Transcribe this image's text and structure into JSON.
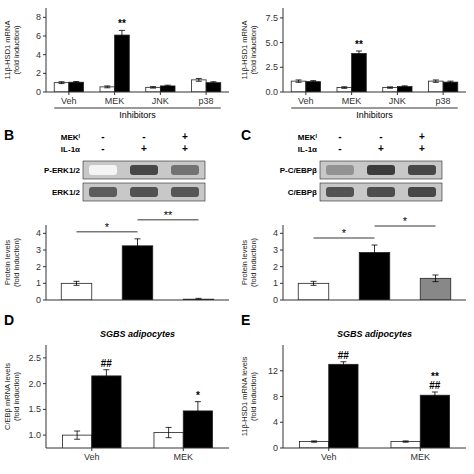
{
  "chart_data": [
    {
      "type": "bar",
      "categories": [
        "Veh",
        "MEK",
        "JNK",
        "p38"
      ],
      "series": [
        {
          "color": "white",
          "values": [
            1.0,
            0.55,
            0.5,
            1.3
          ],
          "error": [
            0.1,
            0.1,
            0.08,
            0.15
          ]
        },
        {
          "color": "black",
          "values": [
            1.05,
            6.1,
            0.65,
            1.0
          ],
          "error": [
            0.08,
            0.5,
            0.08,
            0.1
          ]
        }
      ],
      "ylabel": "11β-HSD1 mRNA\n(fold induction)",
      "xlabel": "Inhibitors",
      "ylim": [
        0,
        9
      ],
      "yticks": [
        0,
        2,
        4,
        6,
        8
      ],
      "annotations": [
        {
          "text": "**",
          "series": 1,
          "category": "MEK"
        }
      ]
    },
    {
      "type": "bar",
      "categories": [
        "Veh",
        "MEK",
        "JNK",
        "p38"
      ],
      "series": [
        {
          "color": "white",
          "values": [
            1.1,
            0.45,
            0.45,
            1.1
          ],
          "error": [
            0.12,
            0.08,
            0.07,
            0.12
          ]
        },
        {
          "color": "black",
          "values": [
            1.05,
            3.9,
            0.55,
            1.0
          ],
          "error": [
            0.1,
            0.25,
            0.07,
            0.1
          ]
        }
      ],
      "ylabel": "11β-HSD1 mRNA\n(fold induction)",
      "xlabel": "Inhibitors",
      "ylim": [
        0,
        8.5
      ],
      "yticks": [
        {
          "value": 0,
          "label": "0.0"
        },
        2.5,
        {
          "value": 5,
          "label": "5.0"
        },
        7.5
      ],
      "annotations": [
        {
          "text": "**",
          "series": 1,
          "category": "MEK"
        }
      ]
    },
    {
      "type": "heatmap",
      "title": "B",
      "column_headers": [
        {
          "label": "MEKᴵ",
          "values": [
            "-",
            "-",
            "+"
          ]
        },
        {
          "label": "IL-1α",
          "values": [
            "-",
            "+",
            "+"
          ]
        }
      ],
      "row_labels": [
        "P-ERK1/2",
        "ERK1/2"
      ],
      "cells": [
        [
          0.05,
          0.85,
          0.65
        ],
        [
          0.75,
          0.8,
          0.78
        ]
      ]
    },
    {
      "type": "heatmap",
      "title": "C",
      "column_headers": [
        {
          "label": "MEKᴵ",
          "values": [
            "-",
            "-",
            "+"
          ]
        },
        {
          "label": "IL-1α",
          "values": [
            "-",
            "+",
            "+"
          ]
        }
      ],
      "row_labels": [
        "P-C/EBPβ",
        "C/EBPβ"
      ],
      "cells": [
        [
          0.5,
          0.9,
          0.85
        ],
        [
          0.8,
          0.82,
          0.85
        ]
      ]
    },
    {
      "type": "bar",
      "categories": [
        null,
        null,
        null
      ],
      "values": [
        1.0,
        3.25,
        0.05
      ],
      "colors": [
        "white",
        "black",
        "white"
      ],
      "error": [
        0.12,
        0.42,
        0.05
      ],
      "ylabel": "Protein levels\n(fold induction)",
      "ylim": [
        0,
        4.5
      ],
      "yticks": [
        0,
        1,
        2,
        3,
        4
      ],
      "brackets": [
        {
          "from": 0,
          "to": 1,
          "text": "*"
        },
        {
          "from": 1,
          "to": 2,
          "text": "**"
        }
      ]
    },
    {
      "type": "bar",
      "categories": [
        null,
        null,
        null
      ],
      "values": [
        1.0,
        2.85,
        1.3
      ],
      "colors": [
        "white",
        "black",
        "#888888"
      ],
      "error": [
        0.12,
        0.45,
        0.2
      ],
      "ylabel": "Protein levels\n(fold induction)",
      "ylim": [
        0,
        4.5
      ],
      "yticks": [
        0,
        1,
        2,
        3,
        4
      ],
      "brackets": [
        {
          "from": 0,
          "to": 1,
          "text": "*"
        },
        {
          "from": 1,
          "to": 2,
          "text": "*"
        }
      ]
    },
    {
      "type": "bar",
      "title": "D",
      "subtitle": "SGBS adipocytes",
      "categories": [
        "Veh",
        "MEK"
      ],
      "series": [
        {
          "color": "white",
          "values": [
            1.0,
            1.05
          ],
          "error": [
            0.08,
            0.1
          ]
        },
        {
          "color": "black",
          "values": [
            2.15,
            1.47
          ],
          "error": [
            0.12,
            0.18
          ]
        }
      ],
      "ylabel": "C/EBβ mRNA levels\n(fold induction)",
      "ylim": [
        0.75,
        2.75
      ],
      "yticks": [
        {
          "value": 1.0,
          "label": "1.0"
        },
        1.5,
        {
          "value": 2.0,
          "label": "2.0"
        },
        2.5
      ],
      "annotations": [
        {
          "text": "##",
          "series": 1,
          "category": "Veh"
        },
        {
          "text": "*",
          "series": 1,
          "category": "MEK"
        }
      ]
    },
    {
      "type": "bar",
      "title": "E",
      "subtitle": "SGBS adipocytes",
      "categories": [
        "Veh",
        "MEK"
      ],
      "series": [
        {
          "color": "white",
          "values": [
            1.0,
            1.0
          ],
          "error": [
            0.1,
            0.1
          ]
        },
        {
          "color": "black",
          "values": [
            13.0,
            8.2
          ],
          "error": [
            0.4,
            0.5
          ]
        }
      ],
      "ylabel": "11β-HSD1 mRNA levels\n(fold induction)",
      "ylim": [
        0,
        16
      ],
      "yticks": [
        0,
        4,
        8,
        12
      ],
      "annotations": [
        {
          "text": "##",
          "series": 1,
          "category": "Veh"
        },
        {
          "text": "##",
          "series": 1,
          "category": "MEK"
        },
        {
          "text": "**",
          "series": 1,
          "category": "MEK"
        }
      ]
    }
  ]
}
